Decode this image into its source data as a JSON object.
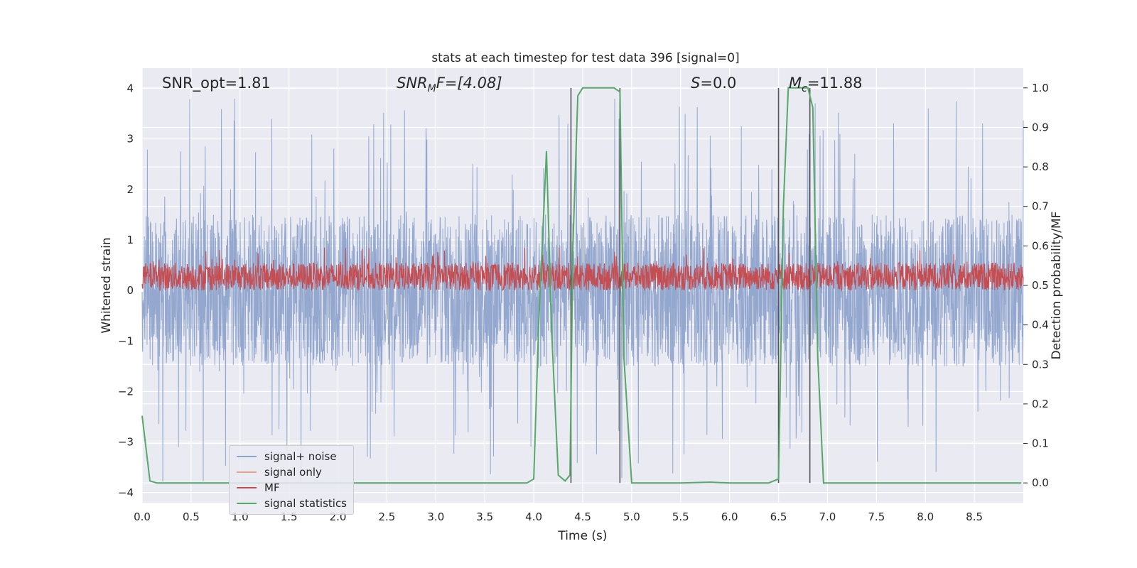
{
  "chart_data": {
    "type": "line",
    "title": "stats at each timestep for test data 396 [signal=0]",
    "xlabel": "Time (s)",
    "ylabel": "Whitened strain",
    "y2label": "Detection probability/MF",
    "xlim": [
      0.0,
      9.0
    ],
    "ylim": [
      -4.2,
      4.4
    ],
    "y2lim": [
      -0.05,
      1.05
    ],
    "x_ticks": [
      "0.0",
      "0.5",
      "1.0",
      "1.5",
      "2.0",
      "2.5",
      "3.0",
      "3.5",
      "4.0",
      "4.5",
      "5.0",
      "5.5",
      "6.0",
      "6.5",
      "7.0",
      "7.5",
      "8.0",
      "8.5"
    ],
    "y_ticks": [
      "4",
      "3",
      "2",
      "1",
      "0",
      "−1",
      "−2",
      "−3",
      "−4"
    ],
    "y2_ticks": [
      "1.0",
      "0.9",
      "0.8",
      "0.7",
      "0.6",
      "0.5",
      "0.4",
      "0.3",
      "0.2",
      "0.1",
      "0.0"
    ],
    "annotations": {
      "snr_opt": "SNR_opt=1.81",
      "snr_mf_main": "SNR",
      "snr_mf_sub": "M",
      "snr_mf_tail": "F=[4.08]",
      "s_main": "S",
      "s_tail": "=0.0",
      "mc_main": "M",
      "mc_sub": "c",
      "mc_tail": "=11.88"
    },
    "series": [
      {
        "name": "signal+ noise",
        "color": "#8fa4cc",
        "envelope": {
          "typical_amplitude": 1.5,
          "peak_amplitude": 3.8
        }
      },
      {
        "name": "signal only",
        "color": "#e8a48a",
        "values": []
      },
      {
        "name": "MF",
        "color": "#c44e52",
        "envelope": {
          "baseline": 0.0,
          "typical_top": 0.55,
          "peak_top": 0.85
        }
      },
      {
        "name": "signal statistics",
        "color": "#55a868",
        "axis": "right",
        "x": [
          0.0,
          0.08,
          0.15,
          0.5,
          1.0,
          2.0,
          3.0,
          3.5,
          3.93,
          4.0,
          4.05,
          4.13,
          4.18,
          4.25,
          4.32,
          4.37,
          4.4,
          4.45,
          4.5,
          4.6,
          4.7,
          4.82,
          4.88,
          4.92,
          5.0,
          5.5,
          5.8,
          6.0,
          6.4,
          6.5,
          6.55,
          6.6,
          6.8,
          6.85,
          6.9,
          6.96,
          7.0,
          7.5,
          8.0,
          8.5,
          8.98
        ],
        "values": [
          0.17,
          0.005,
          0.0,
          0.0,
          0.0,
          0.0,
          0.0,
          0.0,
          0.0,
          0.01,
          0.4,
          0.84,
          0.4,
          0.02,
          0.005,
          0.02,
          0.6,
          0.98,
          1.0,
          1.0,
          1.0,
          1.0,
          0.99,
          0.32,
          0.0,
          0.0,
          0.002,
          0.0,
          0.0,
          0.01,
          0.7,
          1.0,
          1.0,
          0.95,
          0.32,
          0.0,
          0.0,
          0.0,
          0.0,
          0.0,
          0.0
        ]
      }
    ],
    "vertical_lines": [
      4.38,
      4.88,
      6.5,
      6.82
    ],
    "legend_position": "lower left",
    "grid": true
  }
}
